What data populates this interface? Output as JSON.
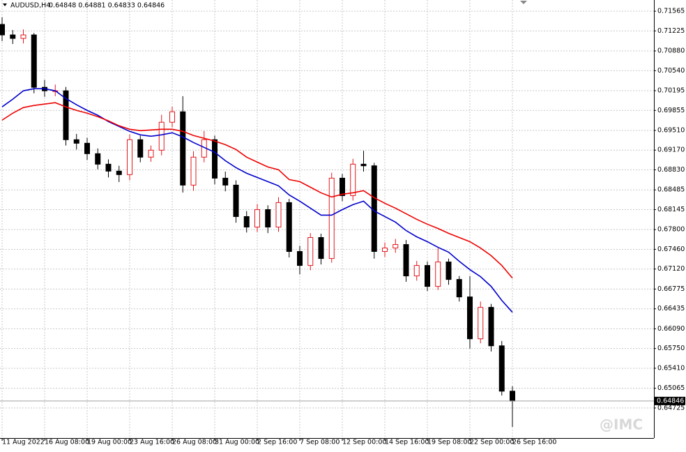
{
  "chart_data": {
    "type": "candlestick",
    "symbol": "AUDUSD,H4",
    "quote": "0.64848 0.64881 0.64833 0.64846",
    "watermark": "@IMC",
    "up_color": "#e3161c",
    "down_color": "#000000",
    "grid": true,
    "categories": [
      "11 Aug 2022",
      null,
      null,
      null,
      "16 Aug 08:00",
      null,
      null,
      null,
      "19 Aug 00:00",
      null,
      null,
      null,
      "23 Aug 16:00",
      null,
      null,
      null,
      "26 Aug 08:00",
      null,
      null,
      null,
      "31 Aug 00:00",
      null,
      null,
      null,
      "2 Sep 16:00",
      null,
      null,
      null,
      "7 Sep 08:00",
      null,
      null,
      null,
      "12 Sep 00:00",
      null,
      null,
      null,
      "14 Sep 16:00",
      null,
      null,
      null,
      "19 Sep 08:00",
      null,
      null,
      null,
      "22 Sep 00:00",
      null,
      null,
      null,
      "26 Sep 16:00"
    ],
    "open": [
      0.71337,
      0.71156,
      0.71096,
      0.71156,
      0.70253,
      0.70193,
      0.70193,
      0.6935,
      0.69289,
      0.69109,
      0.68928,
      0.68808,
      0.68748,
      0.6935,
      0.69049,
      0.69169,
      0.69651,
      0.69831,
      0.68567,
      0.69049,
      0.6935,
      0.68687,
      0.68567,
      0.68025,
      0.67844,
      0.68145,
      0.67844,
      0.68266,
      0.67423,
      0.67182,
      0.67664,
      0.67302,
      0.68687,
      0.68386,
      0.68928,
      0.689,
      0.67423,
      0.67483,
      0.67543,
      0.67002,
      0.67182,
      0.66821,
      0.67242,
      0.66941,
      0.6664,
      0.65918,
      0.6646,
      0.65797,
      0.65015
    ],
    "high": [
      0.7146,
      0.7124,
      0.7125,
      0.7119,
      0.7038,
      0.703,
      0.7026,
      0.6945,
      0.6938,
      0.692,
      0.6901,
      0.689,
      0.6944,
      0.6942,
      0.6925,
      0.6978,
      0.6992,
      0.701,
      0.6915,
      0.695,
      0.6942,
      0.688,
      0.6865,
      0.6812,
      0.6824,
      0.6822,
      0.6836,
      0.6833,
      0.6752,
      0.6774,
      0.6773,
      0.6878,
      0.6876,
      0.6902,
      0.6916,
      0.6895,
      0.6758,
      0.6764,
      0.6762,
      0.6726,
      0.6725,
      0.6748,
      0.673,
      0.67,
      0.67,
      0.6656,
      0.6652,
      0.6588,
      0.651
    ],
    "low": [
      0.7105,
      0.71,
      0.7101,
      0.7015,
      0.7009,
      0.701,
      0.6925,
      0.6918,
      0.69,
      0.6884,
      0.687,
      0.6862,
      0.6865,
      0.6896,
      0.6897,
      0.6908,
      0.6956,
      0.6844,
      0.6847,
      0.6896,
      0.6858,
      0.6846,
      0.6792,
      0.6775,
      0.6776,
      0.6774,
      0.6776,
      0.6732,
      0.6703,
      0.671,
      0.672,
      0.6723,
      0.6829,
      0.683,
      0.688,
      0.673,
      0.6733,
      0.674,
      0.669,
      0.6692,
      0.6674,
      0.6676,
      0.6685,
      0.6656,
      0.6575,
      0.6584,
      0.657,
      0.6494,
      0.644
    ],
    "close": [
      0.71156,
      0.71096,
      0.71156,
      0.70253,
      0.70193,
      0.70193,
      0.6935,
      0.69289,
      0.69109,
      0.68928,
      0.68808,
      0.68748,
      0.6935,
      0.69049,
      0.69169,
      0.69651,
      0.69831,
      0.68567,
      0.69049,
      0.6935,
      0.68687,
      0.68567,
      0.68025,
      0.67844,
      0.68145,
      0.67844,
      0.68266,
      0.67423,
      0.67182,
      0.67664,
      0.67302,
      0.68687,
      0.68386,
      0.68928,
      0.689,
      0.67423,
      0.67483,
      0.67543,
      0.67002,
      0.67182,
      0.66821,
      0.67242,
      0.66941,
      0.6664,
      0.65918,
      0.6646,
      0.65797,
      0.65015,
      0.64846
    ],
    "lines": [
      {
        "color": "#0000cc",
        "values": [
          0.69916,
          0.70048,
          0.70193,
          0.70229,
          0.70229,
          0.70193,
          0.7006,
          0.69952,
          0.69855,
          0.69771,
          0.69663,
          0.69578,
          0.69494,
          0.69434,
          0.6941,
          0.69434,
          0.6947,
          0.69398,
          0.69301,
          0.69217,
          0.69133,
          0.68988,
          0.68868,
          0.68772,
          0.68699,
          0.68627,
          0.68555,
          0.68398,
          0.6829,
          0.6817,
          0.68049,
          0.68049,
          0.68145,
          0.6823,
          0.6829,
          0.68121,
          0.68025,
          0.67929,
          0.67784,
          0.67676,
          0.67592,
          0.67495,
          0.67411,
          0.67254,
          0.6711,
          0.66989,
          0.66821,
          0.6658,
          0.66375
        ]
      },
      {
        "color": "#ee0000",
        "values": [
          0.69687,
          0.69807,
          0.69904,
          0.6994,
          0.69964,
          0.69988,
          0.69916,
          0.69855,
          0.69807,
          0.69747,
          0.69675,
          0.6959,
          0.6953,
          0.69506,
          0.69518,
          0.6953,
          0.6953,
          0.69494,
          0.69422,
          0.69374,
          0.69326,
          0.69265,
          0.69181,
          0.69049,
          0.68964,
          0.6888,
          0.68832,
          0.68663,
          0.68627,
          0.68531,
          0.68434,
          0.68362,
          0.6841,
          0.68434,
          0.68471,
          0.6835,
          0.68254,
          0.6817,
          0.68073,
          0.67977,
          0.67893,
          0.6782,
          0.67736,
          0.67664,
          0.67592,
          0.67483,
          0.67351,
          0.67182,
          0.66965
        ]
      }
    ],
    "last_price": 0.64846,
    "ylim": [
      0.64207,
      0.71758
    ],
    "yticks": [
      0.71565,
      0.71225,
      {
        "value": 0.7088,
        "label": "0.70880"
      },
      {
        "value": 0.7054,
        "label": "0.70540"
      },
      0.70195,
      0.69855,
      {
        "value": 0.6951,
        "label": "0.69510"
      },
      {
        "value": 0.6917,
        "label": "0.69170"
      },
      {
        "value": 0.6883,
        "label": "0.68830"
      },
      0.68485,
      0.68145,
      {
        "value": 0.678,
        "label": "0.67800"
      },
      {
        "value": 0.6746,
        "label": "0.67460"
      },
      {
        "value": 0.6712,
        "label": "0.67120"
      },
      0.66775,
      0.66435,
      {
        "value": 0.6609,
        "label": "0.66090"
      },
      {
        "value": 0.6575,
        "label": "0.65750"
      },
      {
        "value": 0.6541,
        "label": "0.65410"
      },
      0.65065,
      0.64725
    ]
  }
}
